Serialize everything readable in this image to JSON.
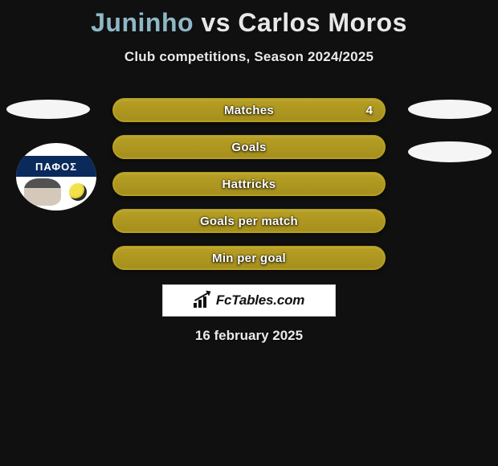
{
  "title": {
    "player1": "Juninho",
    "connector": "vs",
    "player2": "Carlos Moros",
    "player1_color": "#8fb8c6",
    "connector_color": "#e8e8e8",
    "player2_color": "#e8e8e8"
  },
  "subtitle": "Club competitions, Season 2024/2025",
  "badge_text": "ΠΑΦΟΣ",
  "stats": {
    "type": "bar",
    "bar_bg_color": "#a9931f",
    "bar_border_color": "#b79f1f",
    "label_color": "#ffffff",
    "label_fontsize": 15,
    "rows": [
      {
        "label": "Matches",
        "value_right": "4"
      },
      {
        "label": "Goals",
        "value_right": ""
      },
      {
        "label": "Hattricks",
        "value_right": ""
      },
      {
        "label": "Goals per match",
        "value_right": ""
      },
      {
        "label": "Min per goal",
        "value_right": ""
      }
    ]
  },
  "logo_text": "FcTables.com",
  "date": "16 february 2025",
  "colors": {
    "page_bg": "#101010",
    "oval_bg": "#f5f5f5",
    "logo_box_border": "#cfcfcf",
    "logo_box_bg": "#ffffff",
    "badge_band": "#0a2a5c"
  }
}
